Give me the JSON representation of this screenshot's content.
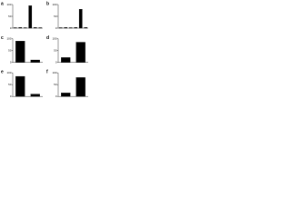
{
  "chart_data": [
    {
      "type": "bar",
      "label": "a",
      "values": [
        2,
        3,
        2,
        95,
        3,
        2
      ],
      "color": "#000000",
      "ylim": [
        0,
        100
      ],
      "yticks": [
        0,
        50,
        100
      ]
    },
    {
      "type": "bar",
      "label": "b",
      "values": [
        2,
        3,
        2,
        3,
        80,
        3
      ],
      "color": "#000000",
      "ylim": [
        0,
        100
      ],
      "yticks": [
        0,
        50,
        100
      ]
    },
    {
      "type": "bar",
      "label": "c",
      "values": [
        90,
        10
      ],
      "color": "#000000",
      "ylim": [
        0,
        100
      ],
      "yticks": [
        0,
        50,
        100
      ]
    },
    {
      "type": "bar",
      "label": "d",
      "values": [
        20,
        85
      ],
      "color": "#000000",
      "ylim": [
        0,
        100
      ],
      "yticks": [
        0,
        50,
        100
      ]
    },
    {
      "type": "bar",
      "label": "e",
      "values": [
        85,
        10
      ],
      "color": "#000000",
      "ylim": [
        0,
        100
      ],
      "yticks": [
        0,
        50,
        100
      ]
    },
    {
      "type": "bar",
      "label": "f",
      "values": [
        15,
        80
      ],
      "color": "#000000",
      "ylim": [
        0,
        100
      ],
      "yticks": [
        0,
        50,
        100
      ]
    }
  ]
}
